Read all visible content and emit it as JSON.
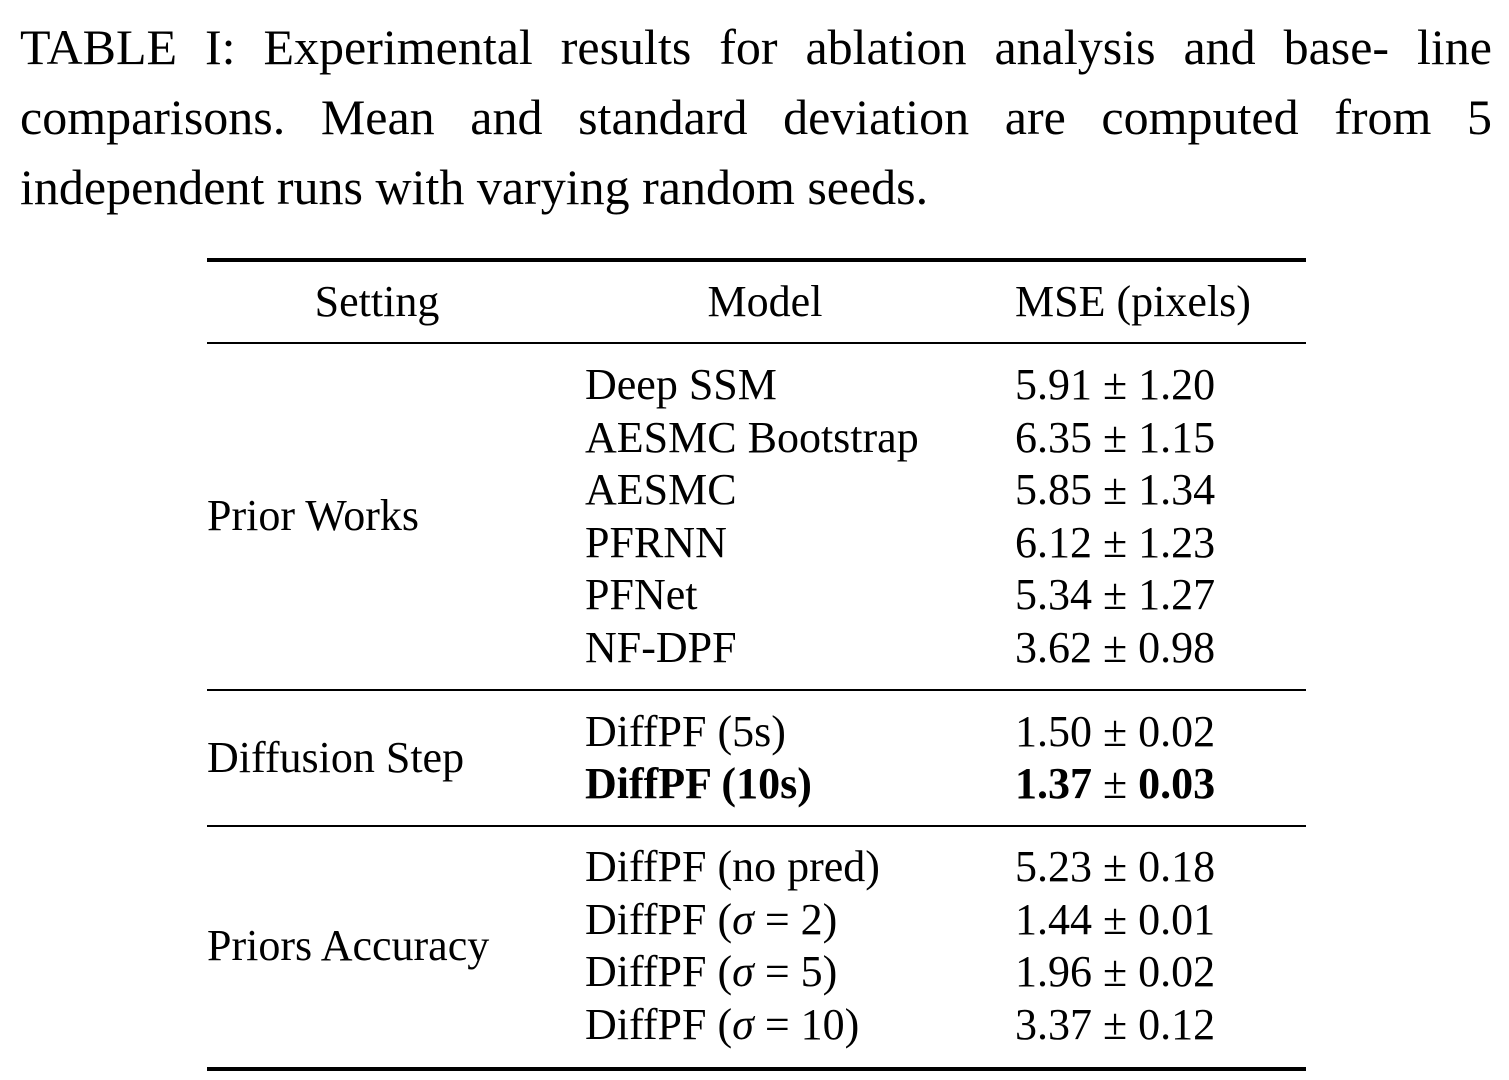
{
  "caption": "TABLE I: Experimental results for ablation analysis and baseline comparisons. Mean and standard deviation are computed from 5 independent runs with varying random seeds.",
  "caption_parts": {
    "line1": "TABLE I: Experimental results for ablation analysis and base-",
    "line2": "line comparisons. Mean and standard deviation are computed",
    "line3": "from 5 independent runs with varying random seeds."
  },
  "table": {
    "headers": {
      "setting": "Setting",
      "model": "Model",
      "mse": "MSE (pixels)"
    },
    "groups": [
      {
        "setting": "Prior Works",
        "rows": [
          {
            "model": "Deep SSM",
            "mean": "5.91",
            "std": "1.20"
          },
          {
            "model": "AESMC Bootstrap",
            "mean": "6.35",
            "std": "1.15"
          },
          {
            "model": "AESMC",
            "mean": "5.85",
            "std": "1.34"
          },
          {
            "model": "PFRNN",
            "mean": "6.12",
            "std": "1.23"
          },
          {
            "model": "PFNet",
            "mean": "5.34",
            "std": "1.27"
          },
          {
            "model": "NF-DPF",
            "mean": "3.62",
            "std": "0.98"
          }
        ]
      },
      {
        "setting": "Diffusion Step",
        "rows": [
          {
            "model": "DiffPF (5s)",
            "mean": "1.50",
            "std": "0.02"
          },
          {
            "model": "DiffPF (10s)",
            "mean": "1.37",
            "std": "0.03",
            "bold": true
          }
        ]
      },
      {
        "setting": "Priors Accuracy",
        "rows": [
          {
            "model": "DiffPF (no pred)",
            "mean": "5.23",
            "std": "0.18"
          },
          {
            "model_prefix": "DiffPF (",
            "sigma": "σ",
            "model_suffix": " = 2)",
            "mean": "1.44",
            "std": "0.01"
          },
          {
            "model_prefix": "DiffPF (",
            "sigma": "σ",
            "model_suffix": " = 5)",
            "mean": "1.96",
            "std": "0.02"
          },
          {
            "model_prefix": "DiffPF (",
            "sigma": "σ",
            "model_suffix": " = 10)",
            "mean": "3.37",
            "std": "0.12"
          }
        ]
      }
    ],
    "pm_symbol": "±"
  }
}
